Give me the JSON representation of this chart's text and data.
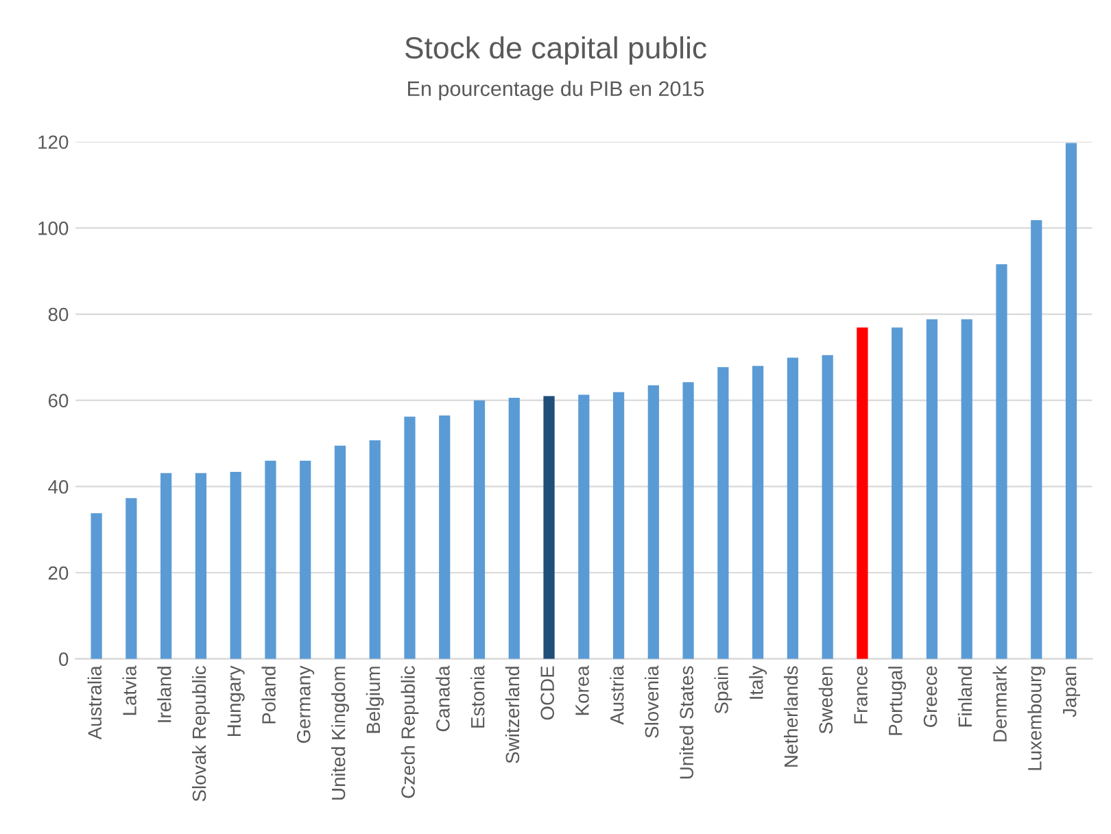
{
  "chart_data": {
    "type": "bar",
    "title": "Stock de capital public",
    "subtitle": "En pourcentage du PIB en 2015",
    "categories": [
      "Australia",
      "Latvia",
      "Ireland",
      "Slovak Republic",
      "Hungary",
      "Poland",
      "Germany",
      "United Kingdom",
      "Belgium",
      "Czech Republic",
      "Canada",
      "Estonia",
      "Switzerland",
      "OCDE",
      "Korea",
      "Austria",
      "Slovenia",
      "United States",
      "Spain",
      "Italy",
      "Netherlands",
      "Sweden",
      "France",
      "Portugal",
      "Greece",
      "Finland",
      "Denmark",
      "Luxembourg",
      "Japan"
    ],
    "values": [
      33.8,
      37.3,
      43.1,
      43.1,
      43.4,
      46,
      46,
      49.5,
      50.7,
      56.2,
      56.5,
      60,
      60.6,
      61,
      61.3,
      61.9,
      63.5,
      64.2,
      67.7,
      68,
      69.9,
      70.5,
      76.9,
      76.9,
      78.8,
      78.8,
      91.6,
      101.8,
      119.7
    ],
    "colors": [
      "#5b9bd5",
      "#5b9bd5",
      "#5b9bd5",
      "#5b9bd5",
      "#5b9bd5",
      "#5b9bd5",
      "#5b9bd5",
      "#5b9bd5",
      "#5b9bd5",
      "#5b9bd5",
      "#5b9bd5",
      "#5b9bd5",
      "#5b9bd5",
      "#1f4e79",
      "#5b9bd5",
      "#5b9bd5",
      "#5b9bd5",
      "#5b9bd5",
      "#5b9bd5",
      "#5b9bd5",
      "#5b9bd5",
      "#5b9bd5",
      "#ff0000",
      "#5b9bd5",
      "#5b9bd5",
      "#5b9bd5",
      "#5b9bd5",
      "#5b9bd5",
      "#5b9bd5"
    ],
    "ylim": [
      0,
      120
    ],
    "yticks": [
      0,
      20,
      40,
      60,
      80,
      100,
      120
    ],
    "grid": "y"
  }
}
